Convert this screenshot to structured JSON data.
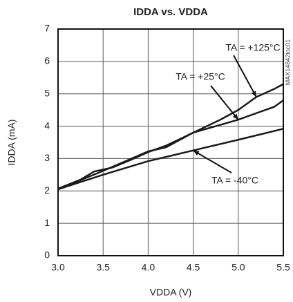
{
  "chart_data": {
    "type": "line",
    "title": "IDDA vs. VDDA",
    "x_label": "VDDA (V)",
    "y_label": "IDDA (mA)",
    "side_label": "MAX14842toc01",
    "series": [
      {
        "name": "TA = +125°C",
        "color": "#1a1a1a",
        "x": [
          3.0,
          3.25,
          3.4,
          3.6,
          3.8,
          4.0,
          4.2,
          4.5,
          4.8,
          5.0,
          5.2,
          5.4,
          5.5
        ],
        "values": [
          2.07,
          2.35,
          2.6,
          2.72,
          2.95,
          3.2,
          3.4,
          3.8,
          4.2,
          4.5,
          4.9,
          5.15,
          5.3
        ]
      },
      {
        "name": "TA = +25°C",
        "color": "#1a1a1a",
        "x": [
          3.0,
          3.5,
          4.0,
          4.2,
          4.5,
          5.0,
          5.3,
          5.4,
          5.5
        ],
        "values": [
          2.05,
          2.62,
          3.22,
          3.35,
          3.8,
          4.2,
          4.5,
          4.6,
          4.8
        ]
      },
      {
        "name": "TA = -40°C",
        "color": "#1a1a1a",
        "x": [
          3.0,
          3.5,
          4.0,
          4.5,
          5.0,
          5.5
        ],
        "values": [
          2.05,
          2.5,
          2.92,
          3.25,
          3.58,
          3.92
        ]
      }
    ],
    "xlim": [
      3.0,
      5.5
    ],
    "xticks": [
      {
        "value": 3.0,
        "label": "3.0"
      },
      {
        "value": 3.5,
        "label": "3.5"
      },
      {
        "value": 4.0,
        "label": "4.0"
      },
      {
        "value": 4.5,
        "label": "4.5"
      },
      {
        "value": 5.0,
        "label": "5.0"
      },
      {
        "value": 5.5,
        "label": "5.5"
      }
    ],
    "ylim": [
      0,
      7
    ],
    "yticks": [
      0,
      1,
      2,
      3,
      4,
      5,
      6,
      7
    ],
    "grid": true
  }
}
